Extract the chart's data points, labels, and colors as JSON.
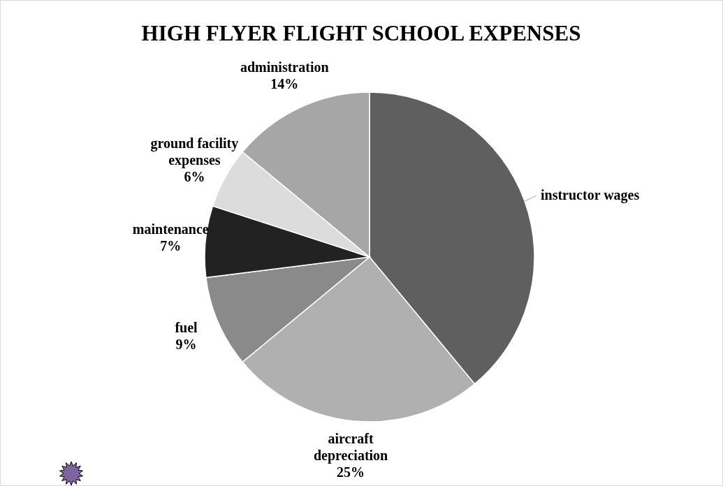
{
  "chart_data": {
    "type": "pie",
    "title": "HIGH FLYER FLIGHT SCHOOL EXPENSES",
    "categories": [
      "instructor wages",
      "aircraft depreciation",
      "fuel",
      "maintenance",
      "ground facility expenses",
      "administration"
    ],
    "values": [
      39,
      25,
      9,
      7,
      6,
      14
    ],
    "colors": [
      "#5f5f5f",
      "#b0b0b0",
      "#8a8a8a",
      "#222222",
      "#dcdcdc",
      "#a6a6a6"
    ],
    "value_labels": [
      null,
      "25%",
      "9%",
      "7%",
      "6%",
      "14%"
    ]
  }
}
